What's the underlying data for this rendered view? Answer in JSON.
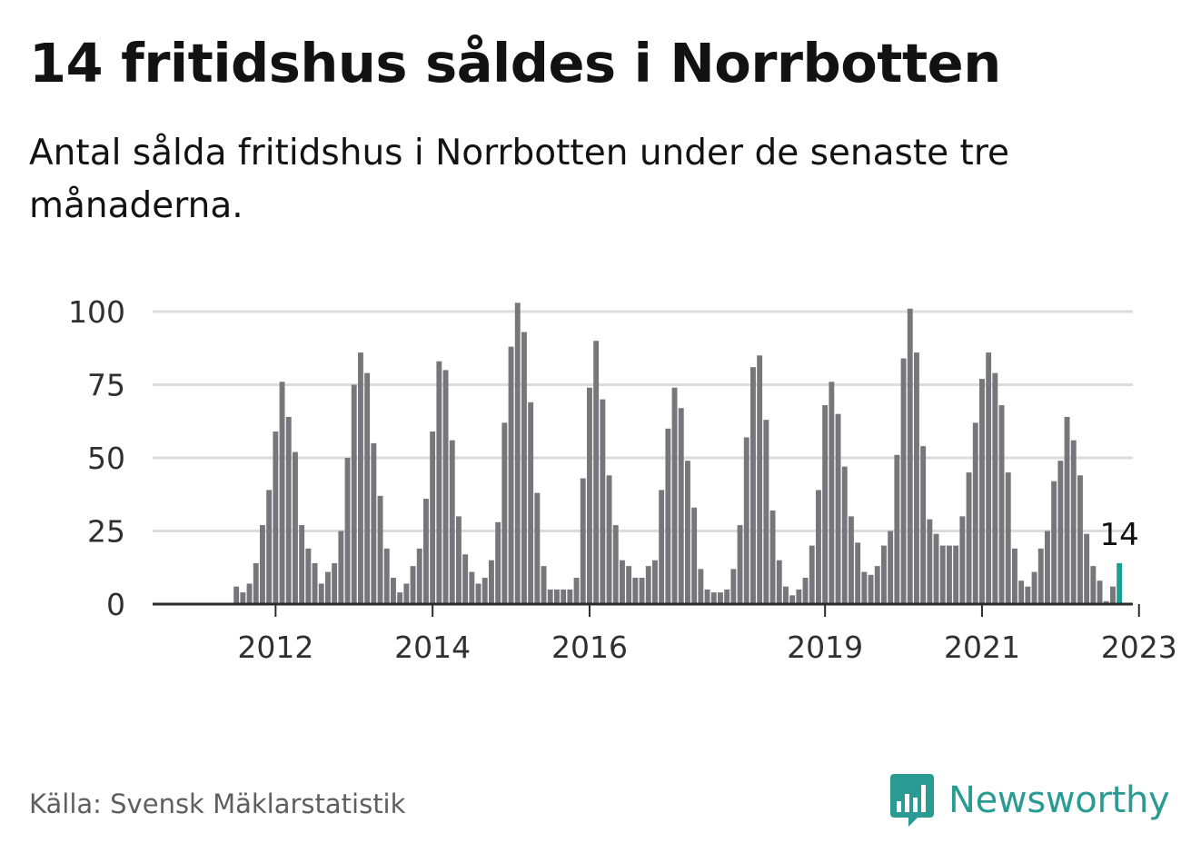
{
  "title": "14 fritidshus såldes i Norrbotten",
  "subtitle": "Antal sålda fritidshus i Norrbotten under de senaste tre månaderna.",
  "source": "Källa: Svensk Mäklarstatistik",
  "logo": {
    "text": "Newsworthy",
    "icon": "bar-chart-speech-bubble-icon",
    "color": "#2a9b93"
  },
  "colors": {
    "bar": "#77767b",
    "highlight": "#17a194",
    "grid": "#dcdcdc",
    "axis": "#2b2b2b",
    "text": "#303030"
  },
  "chart_data": {
    "type": "bar",
    "title": "14 fritidshus såldes i Norrbotten",
    "subtitle": "Antal sålda fritidshus i Norrbotten under de senaste tre månaderna.",
    "xlabel": "",
    "ylabel": "",
    "ylim": [
      0,
      100
    ],
    "yticks": [
      0,
      25,
      50,
      75,
      100
    ],
    "xticks": [
      "2012",
      "2014",
      "2016",
      "2019",
      "2021",
      "2023"
    ],
    "grid": true,
    "legend": "none",
    "annotation": {
      "label": "14",
      "value": 14
    },
    "series": [
      {
        "values": [
          0,
          0,
          0,
          0,
          0,
          0,
          6,
          4,
          7,
          14,
          27,
          39,
          59,
          76,
          64,
          52,
          27,
          19,
          14,
          7,
          11,
          14,
          25,
          50,
          75,
          86,
          79,
          55,
          37,
          19,
          9,
          4,
          7,
          13,
          19,
          36,
          59,
          83,
          80,
          56,
          30,
          17,
          11,
          7,
          9,
          15,
          28,
          62,
          88,
          103,
          93,
          69,
          38,
          13,
          5,
          5,
          5,
          5,
          9,
          43,
          74,
          90,
          70,
          44,
          27,
          15,
          13,
          9,
          9,
          13,
          15,
          39,
          60,
          74,
          67,
          49,
          33,
          12,
          5,
          4,
          4,
          5,
          12,
          27,
          57,
          81,
          85,
          63,
          32,
          15,
          6,
          3,
          5,
          9,
          20,
          39,
          68,
          76,
          65,
          47,
          30,
          21,
          11,
          10,
          13,
          20,
          25,
          51,
          84,
          101,
          86,
          54,
          29,
          24,
          20,
          20,
          20,
          30,
          45,
          62,
          77,
          86,
          79,
          68,
          45,
          19,
          8,
          6,
          11,
          19,
          25,
          42,
          49,
          64,
          56,
          44,
          24,
          13,
          8,
          1,
          6,
          14
        ]
      }
    ]
  }
}
